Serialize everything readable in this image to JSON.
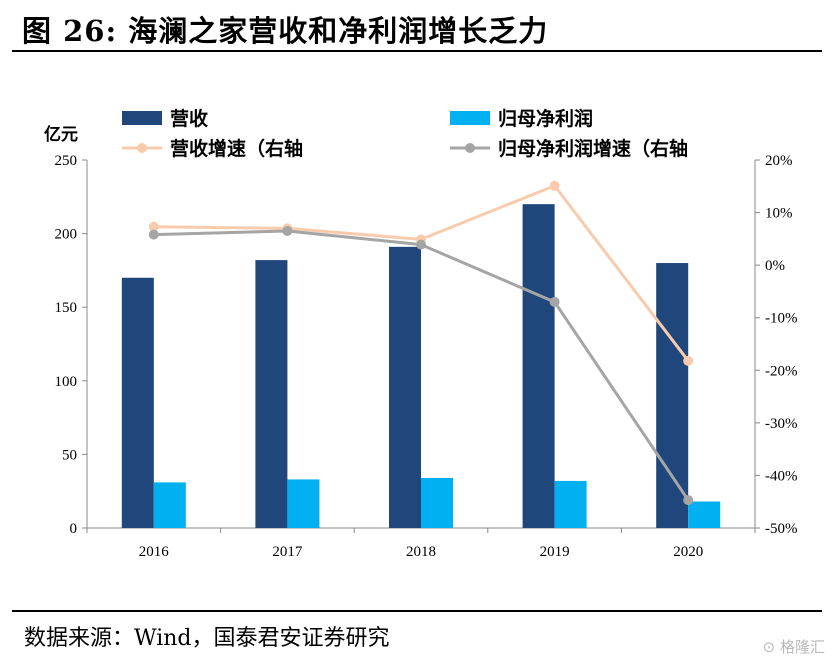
{
  "header": {
    "title": "图 26:  海澜之家营收和净利润增长乏力"
  },
  "footer": {
    "source": "数据来源：Wind，国泰君安证券研究",
    "watermark": "格隆汇"
  },
  "chart_data": {
    "type": "bar",
    "categories": [
      "2016",
      "2017",
      "2018",
      "2019",
      "2020"
    ],
    "series": [
      {
        "name": "营收",
        "kind": "bar",
        "axis": "left",
        "color": "#1f477c",
        "values": [
          170,
          182,
          191,
          220,
          180
        ]
      },
      {
        "name": "归母净利润",
        "kind": "bar",
        "axis": "left",
        "color": "#00b0f0",
        "values": [
          31,
          33,
          34,
          32,
          18
        ]
      },
      {
        "name": "营收增速（右轴",
        "kind": "line",
        "axis": "right",
        "color": "#f8cbad",
        "values": [
          7.3,
          7.0,
          4.9,
          15.1,
          -18.2
        ]
      },
      {
        "name": "归母净利润增速（右轴",
        "kind": "line",
        "axis": "right",
        "color": "#a5a5a5",
        "values": [
          5.8,
          6.5,
          3.9,
          -7.0,
          -44.7
        ]
      }
    ],
    "left_axis": {
      "unit_label": "亿元",
      "ylim": [
        0,
        250
      ],
      "ticks": [
        "0",
        "50",
        "100",
        "150",
        "200",
        "250"
      ]
    },
    "right_axis": {
      "ylim": [
        -50,
        20
      ],
      "ticks": [
        "20%",
        "10%",
        "0%",
        "-10%",
        "-20%",
        "-30%",
        "-40%",
        "-50%"
      ]
    },
    "legend_placement": "top",
    "grid": false
  }
}
